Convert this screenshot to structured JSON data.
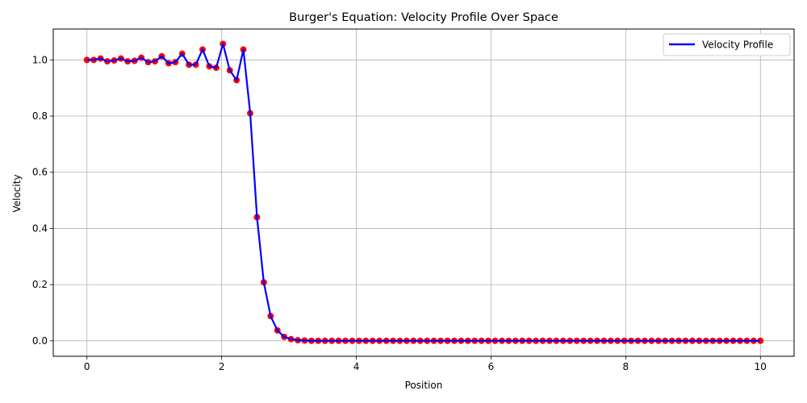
{
  "chart_data": {
    "type": "line",
    "title": "Burger's Equation: Velocity Profile Over Space",
    "xlabel": "Position",
    "ylabel": "Velocity",
    "xlim": [
      -0.5,
      10.5
    ],
    "ylim": [
      -0.055,
      1.11
    ],
    "xticks": [
      0,
      2,
      4,
      6,
      8,
      10
    ],
    "xtick_labels": [
      "0",
      "2",
      "4",
      "6",
      "8",
      "10"
    ],
    "yticks": [
      0.0,
      0.2,
      0.4,
      0.6,
      0.8,
      1.0
    ],
    "ytick_labels": [
      "0.0",
      "0.2",
      "0.4",
      "0.6",
      "0.8",
      "1.0"
    ],
    "grid": true,
    "legend_position": "top-right",
    "line_color": "#0000ff",
    "marker_color": "#ff0000",
    "series": [
      {
        "name": "Velocity Profile",
        "x_start": 0,
        "x_end": 10,
        "values": [
          1.0,
          1.0,
          1.005,
          0.995,
          0.998,
          1.005,
          0.995,
          0.997,
          1.008,
          0.992,
          0.995,
          1.013,
          0.988,
          0.992,
          1.022,
          0.983,
          0.983,
          1.037,
          0.977,
          0.972,
          1.057,
          0.963,
          0.928,
          1.037,
          0.81,
          0.44,
          0.208,
          0.088,
          0.037,
          0.014,
          0.006,
          0.002,
          0.001,
          0.0,
          0.0,
          0.0,
          0.0,
          0.0,
          0.0,
          0.0,
          0.0,
          0.0,
          0.0,
          0.0,
          0.0,
          0.0,
          0.0,
          0.0,
          0.0,
          0.0,
          0.0,
          0.0,
          0.0,
          0.0,
          0.0,
          0.0,
          0.0,
          0.0,
          0.0,
          0.0,
          0.0,
          0.0,
          0.0,
          0.0,
          0.0,
          0.0,
          0.0,
          0.0,
          0.0,
          0.0,
          0.0,
          0.0,
          0.0,
          0.0,
          0.0,
          0.0,
          0.0,
          0.0,
          0.0,
          0.0,
          0.0,
          0.0,
          0.0,
          0.0,
          0.0,
          0.0,
          0.0,
          0.0,
          0.0,
          0.0,
          0.0,
          0.0,
          0.0,
          0.0,
          0.0,
          0.0,
          0.0,
          0.0,
          0.0,
          0.0
        ]
      }
    ]
  }
}
